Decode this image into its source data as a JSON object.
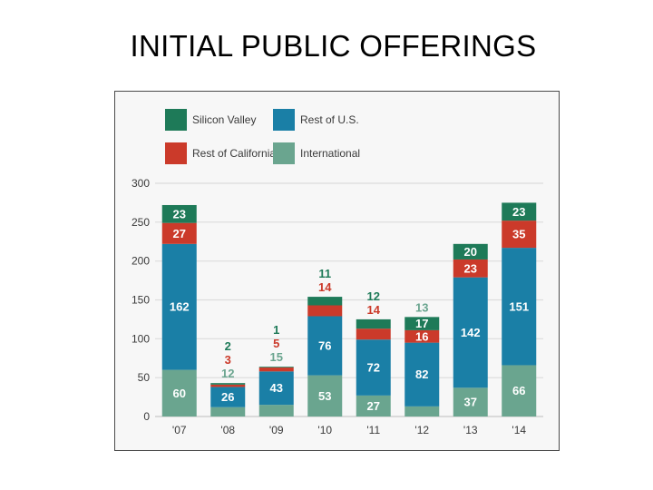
{
  "page": {
    "title": "INITIAL PUBLIC OFFERINGS"
  },
  "chart_data": {
    "type": "bar",
    "stacked": true,
    "title": "INITIAL PUBLIC OFFERINGS",
    "xlabel": "",
    "ylabel": "",
    "ylim": [
      0,
      300
    ],
    "yticks": [
      0,
      50,
      100,
      150,
      200,
      250,
      300
    ],
    "grid": true,
    "legend_position": "top-left",
    "categories": [
      "'07",
      "'08",
      "'09",
      "'10",
      "'11",
      "'12",
      "'13",
      "'14"
    ],
    "series": [
      {
        "name": "International",
        "color": "#6aa58f",
        "label_color": "#ffffff",
        "values": [
          60,
          12,
          15,
          53,
          27,
          13,
          37,
          66
        ]
      },
      {
        "name": "Rest of U.S.",
        "color": "#1a7fa6",
        "label_color": "#ffffff",
        "values": [
          162,
          26,
          43,
          76,
          72,
          82,
          142,
          151
        ]
      },
      {
        "name": "Rest of California",
        "color": "#cb3a2a",
        "label_color": "#ffffff",
        "values": [
          27,
          3,
          5,
          14,
          14,
          16,
          23,
          35
        ]
      },
      {
        "name": "Silicon Valley",
        "color": "#1e7a58",
        "label_color": "#ffffff",
        "values": [
          23,
          2,
          1,
          11,
          12,
          17,
          20,
          23
        ]
      }
    ],
    "legend_order": [
      "Silicon Valley",
      "Rest of U.S.",
      "Rest of California",
      "International"
    ],
    "outside_label_colors": {
      "Silicon Valley": "#1e7a58",
      "Rest of California": "#cb3a2a"
    }
  }
}
